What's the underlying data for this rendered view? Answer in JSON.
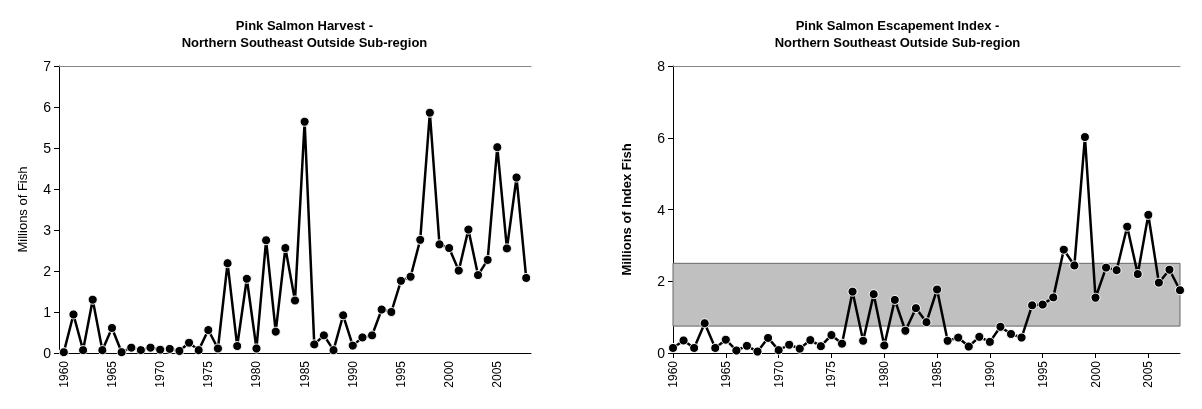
{
  "chart_data": [
    {
      "type": "line",
      "title": "Pink Salmon Harvest -\nNorthern Southeast Outside Sub-region",
      "ylabel": "Millions of Fish",
      "categories": [
        "1960",
        null,
        null,
        null,
        null,
        "1965",
        null,
        null,
        null,
        null,
        "1970",
        null,
        null,
        null,
        null,
        "1975",
        null,
        null,
        null,
        null,
        "1980",
        null,
        null,
        null,
        null,
        "1985",
        null,
        null,
        null,
        null,
        "1990",
        null,
        null,
        null,
        null,
        "1995",
        null,
        null,
        null,
        null,
        "2000",
        null,
        null,
        null,
        null,
        "2005",
        null,
        null,
        null
      ],
      "values": [
        0.02,
        0.94,
        0.07,
        1.3,
        0.07,
        0.61,
        0.02,
        0.13,
        0.07,
        0.13,
        0.08,
        0.1,
        0.05,
        0.25,
        0.07,
        0.56,
        0.11,
        2.19,
        0.17,
        1.81,
        0.11,
        2.75,
        0.52,
        2.56,
        1.28,
        5.64,
        0.21,
        0.43,
        0.07,
        0.92,
        0.18,
        0.38,
        0.43,
        1.06,
        1.0,
        1.76,
        1.86,
        2.76,
        5.86,
        2.65,
        2.56,
        2.01,
        3.01,
        1.9,
        2.27,
        5.02,
        2.55,
        4.28,
        1.83
      ],
      "color": "#000000",
      "marker": "circle",
      "line_style": "solid",
      "ylim": [
        0,
        7
      ],
      "yticks": [
        0,
        1,
        2,
        3,
        4,
        5,
        6,
        7
      ]
    },
    {
      "type": "line",
      "title": "Pink Salmon Escapement Index -\nNorthern Southeast Outside Sub-region",
      "ylabel": "Millions of Index Fish",
      "categories": [
        "1960",
        null,
        null,
        null,
        null,
        "1965",
        null,
        null,
        null,
        null,
        "1970",
        null,
        null,
        null,
        null,
        "1975",
        null,
        null,
        null,
        null,
        "1980",
        null,
        null,
        null,
        null,
        "1985",
        null,
        null,
        null,
        null,
        "1990",
        null,
        null,
        null,
        null,
        "1995",
        null,
        null,
        null,
        null,
        "2000",
        null,
        null,
        null,
        null,
        "2005",
        null,
        null,
        null
      ],
      "values": [
        0.14,
        0.35,
        0.14,
        0.83,
        0.14,
        0.37,
        0.07,
        0.2,
        0.04,
        0.42,
        0.08,
        0.23,
        0.12,
        0.36,
        0.19,
        0.5,
        0.26,
        1.71,
        0.34,
        1.64,
        0.21,
        1.48,
        0.62,
        1.25,
        0.86,
        1.77,
        0.34,
        0.43,
        0.18,
        0.45,
        0.31,
        0.73,
        0.53,
        0.43,
        1.33,
        1.35,
        1.55,
        2.88,
        2.44,
        6.02,
        1.54,
        2.38,
        2.31,
        3.52,
        2.2,
        3.85,
        1.96,
        2.32,
        1.75
      ],
      "color": "#000000",
      "marker": "circle",
      "line_style": "solid",
      "ylim": [
        0,
        8
      ],
      "yticks": [
        0,
        2,
        4,
        6,
        8
      ],
      "bands": [
        {
          "axis": "y",
          "from": 0.75,
          "to": 2.5,
          "color": "#c0c0c0"
        }
      ]
    }
  ]
}
